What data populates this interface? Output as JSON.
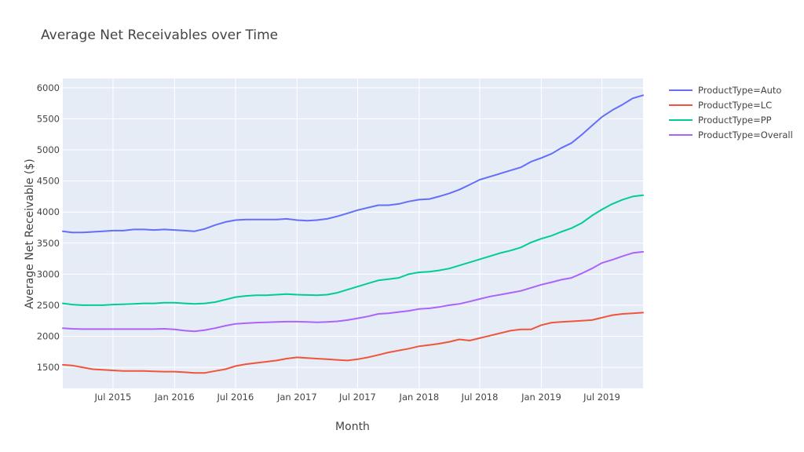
{
  "chart_data": {
    "type": "line",
    "title": "Average Net Receivables over Time",
    "xlabel": "Month",
    "ylabel": "Average Net Receivable ($)",
    "x_range": [
      "2015-02-01",
      "2019-11-01"
    ],
    "ylim": [
      1160,
      6150
    ],
    "x_ticks": [
      {
        "date": "2015-07-01",
        "label": "Jul 2015"
      },
      {
        "date": "2016-01-01",
        "label": "Jan 2016"
      },
      {
        "date": "2016-07-01",
        "label": "Jul 2016"
      },
      {
        "date": "2017-01-01",
        "label": "Jan 2017"
      },
      {
        "date": "2017-07-01",
        "label": "Jul 2017"
      },
      {
        "date": "2018-01-01",
        "label": "Jan 2018"
      },
      {
        "date": "2018-07-01",
        "label": "Jul 2018"
      },
      {
        "date": "2019-01-01",
        "label": "Jan 2019"
      },
      {
        "date": "2019-07-01",
        "label": "Jul 2019"
      }
    ],
    "y_ticks": [
      1500,
      2000,
      2500,
      3000,
      3500,
      4000,
      4500,
      5000,
      5500,
      6000
    ],
    "grid": true,
    "legend_position": "top-right",
    "plot_background": "#e5ecf6",
    "x": [
      "2015-02",
      "2015-03",
      "2015-04",
      "2015-05",
      "2015-06",
      "2015-07",
      "2015-08",
      "2015-09",
      "2015-10",
      "2015-11",
      "2015-12",
      "2016-01",
      "2016-02",
      "2016-03",
      "2016-04",
      "2016-05",
      "2016-06",
      "2016-07",
      "2016-08",
      "2016-09",
      "2016-10",
      "2016-11",
      "2016-12",
      "2017-01",
      "2017-02",
      "2017-03",
      "2017-04",
      "2017-05",
      "2017-06",
      "2017-07",
      "2017-08",
      "2017-09",
      "2017-10",
      "2017-11",
      "2017-12",
      "2018-01",
      "2018-02",
      "2018-03",
      "2018-04",
      "2018-05",
      "2018-06",
      "2018-07",
      "2018-08",
      "2018-09",
      "2018-10",
      "2018-11",
      "2018-12",
      "2019-01",
      "2019-02",
      "2019-03",
      "2019-04",
      "2019-05",
      "2019-06",
      "2019-07",
      "2019-08",
      "2019-09",
      "2019-10",
      "2019-11"
    ],
    "series": [
      {
        "name": "ProductType=Auto",
        "color": "#636efa",
        "values": [
          3690,
          3670,
          3670,
          3680,
          3690,
          3700,
          3700,
          3720,
          3720,
          3710,
          3720,
          3710,
          3700,
          3690,
          3730,
          3790,
          3840,
          3870,
          3880,
          3880,
          3880,
          3880,
          3890,
          3870,
          3860,
          3870,
          3890,
          3930,
          3980,
          4030,
          4070,
          4110,
          4110,
          4130,
          4170,
          4200,
          4210,
          4250,
          4300,
          4360,
          4440,
          4520,
          4570,
          4620,
          4670,
          4720,
          4810,
          4870,
          4940,
          5030,
          5110,
          5240,
          5390,
          5530,
          5640,
          5730,
          5830,
          5880
        ]
      },
      {
        "name": "ProductType=LC",
        "color": "#ef553b",
        "values": [
          1540,
          1530,
          1500,
          1470,
          1460,
          1450,
          1440,
          1440,
          1440,
          1435,
          1430,
          1430,
          1420,
          1410,
          1410,
          1440,
          1470,
          1520,
          1550,
          1570,
          1590,
          1610,
          1640,
          1660,
          1650,
          1640,
          1630,
          1620,
          1610,
          1630,
          1660,
          1700,
          1740,
          1770,
          1800,
          1840,
          1860,
          1880,
          1910,
          1950,
          1930,
          1970,
          2010,
          2050,
          2090,
          2110,
          2110,
          2180,
          2220,
          2230,
          2240,
          2250,
          2260,
          2300,
          2340,
          2360,
          2370,
          2380
        ]
      },
      {
        "name": "ProductType=PP",
        "color": "#00cc96",
        "values": [
          2530,
          2510,
          2500,
          2500,
          2500,
          2510,
          2515,
          2520,
          2530,
          2530,
          2540,
          2540,
          2530,
          2520,
          2530,
          2550,
          2590,
          2630,
          2650,
          2660,
          2660,
          2670,
          2680,
          2670,
          2665,
          2660,
          2670,
          2700,
          2750,
          2800,
          2850,
          2900,
          2920,
          2940,
          3000,
          3030,
          3040,
          3060,
          3090,
          3140,
          3190,
          3240,
          3290,
          3340,
          3380,
          3430,
          3510,
          3570,
          3620,
          3680,
          3740,
          3820,
          3940,
          4040,
          4130,
          4200,
          4250,
          4270
        ]
      },
      {
        "name": "ProductType=Overall",
        "color": "#ab63fa",
        "values": [
          2130,
          2120,
          2115,
          2115,
          2115,
          2115,
          2115,
          2115,
          2115,
          2115,
          2120,
          2110,
          2090,
          2080,
          2100,
          2130,
          2170,
          2200,
          2210,
          2220,
          2225,
          2230,
          2235,
          2235,
          2230,
          2225,
          2230,
          2240,
          2260,
          2290,
          2320,
          2360,
          2370,
          2390,
          2410,
          2440,
          2450,
          2470,
          2500,
          2520,
          2560,
          2600,
          2640,
          2670,
          2700,
          2730,
          2780,
          2830,
          2870,
          2910,
          2940,
          3010,
          3090,
          3180,
          3230,
          3290,
          3340,
          3360
        ]
      }
    ]
  }
}
